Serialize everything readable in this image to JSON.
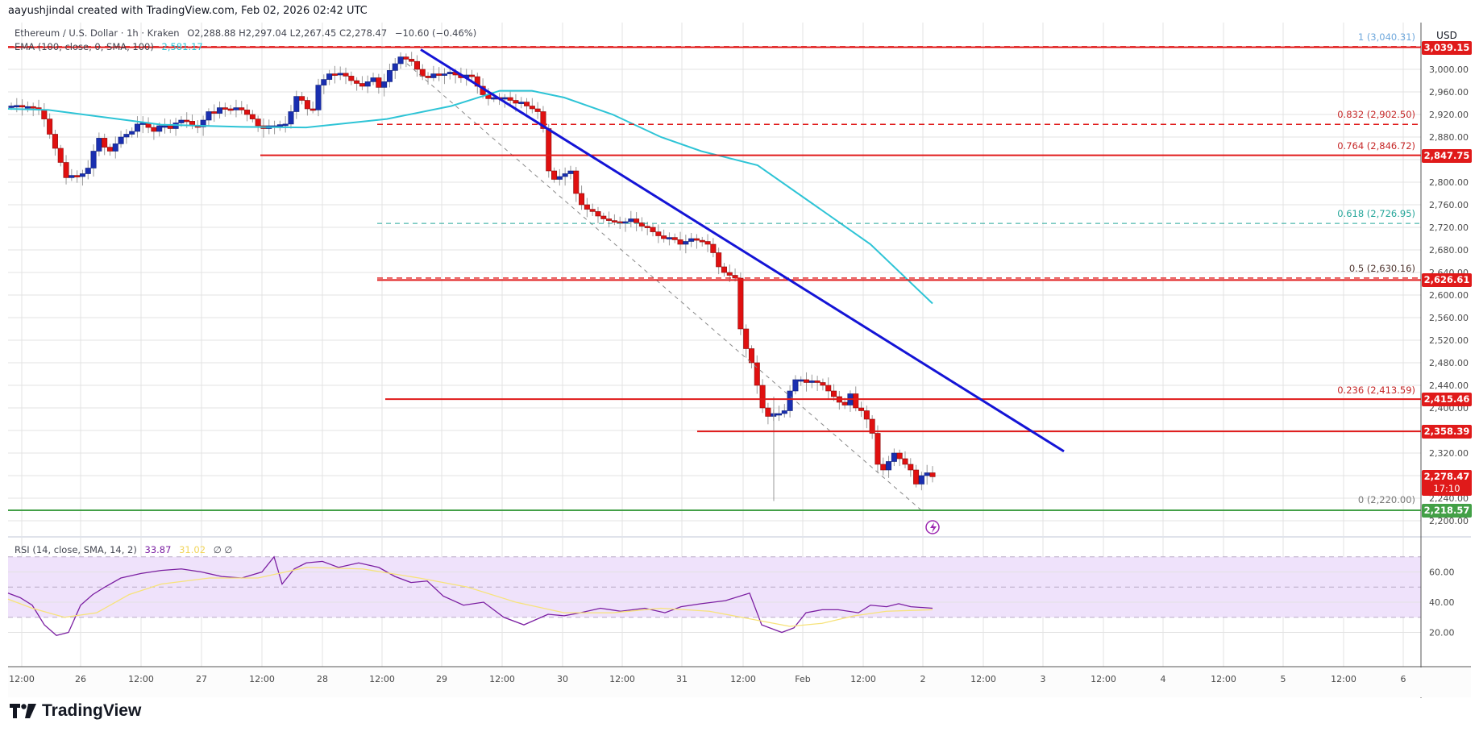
{
  "credit": "aayushjindal created with TradingView.com, Feb 02, 2026 02:42 UTC",
  "legend": {
    "symbol": "Ethereum / U.S. Dollar · 1h · Kraken",
    "ohlc": "O2,288.88  H2,297.04  L2,267.45  C2,278.47",
    "change": "−10.60 (−0.46%)",
    "ema_label": "EMA (100, close, 0, SMA, 100)",
    "ema_value": "2,581.17",
    "rsi_label": "RSI (14, close, SMA, 14, 2)",
    "rsi_value": "33.87",
    "rsi_sma_value": "31.02",
    "rsi_extra": "∅  ∅"
  },
  "currency": "USD",
  "logo_text": "TradingView",
  "colors": {
    "up": "#1a2fb0",
    "down": "#e01010",
    "ema": "#2ec4d6",
    "trendline": "#1414d6",
    "level": "#e01a1a",
    "support": "#43a047",
    "rsi": "#7b1fa2",
    "rsi_sma": "#f7e37a",
    "rsi_band": "#efe2fb"
  },
  "price_axis": {
    "ticks": [
      "3,000.00",
      "2,960.00",
      "2,920.00",
      "2,880.00",
      "2,800.00",
      "2,760.00",
      "2,720.00",
      "2,680.00",
      "2,640.00",
      "2,600.00",
      "2,560.00",
      "2,520.00",
      "2,480.00",
      "2,440.00",
      "2,400.00",
      "2,320.00",
      "2,240.00",
      "2,200.00"
    ],
    "tags": [
      {
        "label": "3,039.15",
        "price": 3039.15,
        "color": "#e01a1a"
      },
      {
        "label": "2,847.75",
        "price": 2847.75,
        "color": "#e01a1a"
      },
      {
        "label": "2,626.61",
        "price": 2626.61,
        "color": "#e01a1a"
      },
      {
        "label": "2,415.46",
        "price": 2415.46,
        "color": "#e01a1a"
      },
      {
        "label": "2,358.39",
        "price": 2358.39,
        "color": "#e01a1a"
      },
      {
        "label": "2,278.47",
        "sub": "17:10",
        "price": 2278.47,
        "color": "#e01a1a"
      },
      {
        "label": "2,218.57",
        "price": 2218.57,
        "color": "#43a047"
      }
    ]
  },
  "rsi_axis": {
    "ticks": [
      "60.00",
      "40.00",
      "20.00"
    ]
  },
  "time_axis": {
    "labels": [
      "12:00",
      "26",
      "12:00",
      "27",
      "12:00",
      "28",
      "12:00",
      "29",
      "12:00",
      "30",
      "12:00",
      "31",
      "12:00",
      "Feb",
      "12:00",
      "2",
      "12:00",
      "3",
      "12:00",
      "4",
      "12:00",
      "5",
      "12:00",
      "6"
    ]
  },
  "fib_levels": [
    {
      "label": "1 (3,040.31)",
      "price": 3040.31,
      "color": "#6fa8dc"
    },
    {
      "label": "0.832 (2,902.50)",
      "price": 2902.5,
      "color": "#c62828"
    },
    {
      "label": "0.764 (2,846.72)",
      "price": 2846.72,
      "color": "#c62828"
    },
    {
      "label": "0.618 (2,726.95)",
      "price": 2726.95,
      "color": "#26a69a"
    },
    {
      "label": "0.5 (2,630.16)",
      "price": 2630.16,
      "color": "#4e342e"
    },
    {
      "label": "0.236 (2,413.59)",
      "price": 2413.59,
      "color": "#c62828"
    },
    {
      "label": "0 (2,220.00)",
      "price": 2220.0,
      "color": "#777777"
    }
  ],
  "chart_data": {
    "type": "candlestick",
    "title": "Ethereum / U.S. Dollar · 1h · Kraken",
    "xlabel": "",
    "ylabel": "USD",
    "ylim": [
      2180,
      3060
    ],
    "x_ticks": [
      "Jan 25 12:00",
      "26",
      "12:00",
      "27",
      "12:00",
      "28",
      "12:00",
      "29",
      "12:00",
      "30",
      "12:00",
      "31",
      "12:00",
      "Feb",
      "12:00",
      "2",
      "12:00",
      "3",
      "12:00",
      "4",
      "12:00",
      "5",
      "12:00",
      "6"
    ],
    "last_price": 2278.47,
    "indicators": {
      "ema100": {
        "last": 2581.17
      },
      "rsi14": {
        "last": 33.87,
        "sma": 31.02,
        "band": [
          30,
          70
        ]
      }
    },
    "horizontal_levels": [
      3039.15,
      2847.75,
      2626.61,
      2415.46,
      2358.39,
      2218.57
    ],
    "fibonacci": [
      {
        "ratio": 1,
        "price": 3040.31
      },
      {
        "ratio": 0.832,
        "price": 2902.5
      },
      {
        "ratio": 0.764,
        "price": 2846.72
      },
      {
        "ratio": 0.618,
        "price": 2726.95
      },
      {
        "ratio": 0.5,
        "price": 2630.16
      },
      {
        "ratio": 0.236,
        "price": 2413.59
      },
      {
        "ratio": 0,
        "price": 2220.0
      }
    ],
    "trendline": {
      "from": {
        "x": "Jan 28 22:00",
        "price": 3035
      },
      "to": {
        "x": "Feb 3 08:00",
        "price": 2323
      }
    },
    "candles_close_approx": [
      2935,
      2936,
      2934,
      2934,
      2932,
      2928,
      2912,
      2885,
      2860,
      2835,
      2808,
      2812,
      2810,
      2815,
      2825,
      2855,
      2878,
      2862,
      2855,
      2868,
      2880,
      2885,
      2890,
      2903,
      2905,
      2897,
      2890,
      2900,
      2900,
      2895,
      2905,
      2910,
      2908,
      2900,
      2898,
      2910,
      2925,
      2922,
      2932,
      2930,
      2928,
      2932,
      2928,
      2920,
      2912,
      2900,
      2895,
      2900,
      2900,
      2902,
      2903,
      2925,
      2952,
      2945,
      2930,
      2928,
      2972,
      2982,
      2992,
      2990,
      2993,
      2988,
      2980,
      2975,
      2970,
      2978,
      2985,
      2968,
      2978,
      2998,
      3010,
      3022,
      3018,
      3014,
      3000,
      2988,
      2985,
      2992,
      2990,
      2992,
      2995,
      2990,
      2985,
      2990,
      2987,
      2970,
      2955,
      2948,
      2950,
      2948,
      2950,
      2945,
      2940,
      2942,
      2935,
      2930,
      2925,
      2895,
      2820,
      2805,
      2810,
      2815,
      2820,
      2780,
      2760,
      2752,
      2748,
      2740,
      2735,
      2732,
      2730,
      2728,
      2730,
      2735,
      2728,
      2722,
      2720,
      2712,
      2705,
      2700,
      2702,
      2698,
      2690,
      2695,
      2700,
      2697,
      2695,
      2690,
      2675,
      2650,
      2640,
      2635,
      2630,
      2540,
      2505,
      2480,
      2440,
      2400,
      2385,
      2390,
      2390,
      2395,
      2430,
      2450,
      2450,
      2445,
      2448,
      2445,
      2440,
      2430,
      2420,
      2410,
      2405,
      2425,
      2400,
      2395,
      2380,
      2355,
      2300,
      2290,
      2305,
      2320,
      2310,
      2300,
      2290,
      2265,
      2280,
      2285,
      2278
    ]
  }
}
